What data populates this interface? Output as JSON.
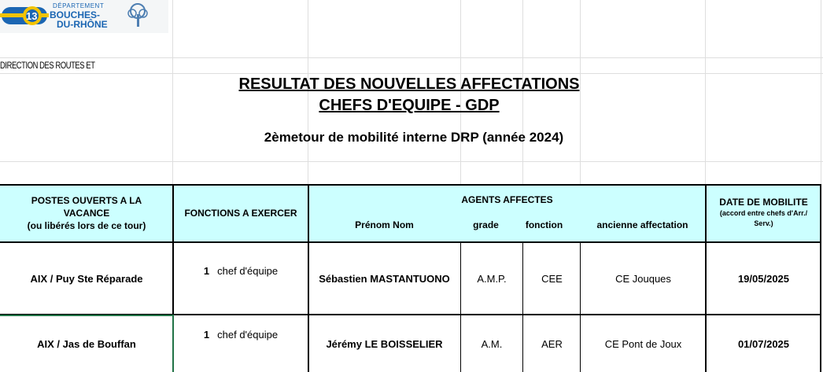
{
  "logo": {
    "departement": "DÉPARTEMENT",
    "line1": "BOUCHES-",
    "line2": "DU-RHÔNE",
    "emblem": "13"
  },
  "direction": "DIRECTION DES ROUTES ET",
  "title_line1": "RESULTAT DES NOUVELLES AFFECTATIONS",
  "title_line2": "CHEFS D'EQUIPE - GDP",
  "subtitle": "2èmetour de mobilité interne DRP (année 2024)",
  "headers": {
    "postes_line1": "POSTES OUVERTS A LA",
    "postes_line2": "VACANCE",
    "postes_line3": "(ou libérés lors de ce tour)",
    "fonctions": "FONCTIONS A EXERCER",
    "agents": "AGENTS AFFECTES",
    "prenom_nom": "Prénom Nom",
    "grade": "grade",
    "fonction": "fonction",
    "ancienne": "ancienne  affectation",
    "date_line1": "DATE DE MOBILITE",
    "date_line2": "(accord entre chefs d'Arr./",
    "date_line3": "Serv.)"
  },
  "rows": [
    {
      "poste": "AIX / Puy Ste Réparade",
      "qty": "1",
      "fonction_exercer": "chef d'équipe",
      "nom": "Sébastien MASTANTUONO",
      "grade": "A.M.P.",
      "fonction": "CEE",
      "ancienne": "CE Jouques",
      "date": "19/05/2025"
    },
    {
      "poste": "AIX / Jas de Bouffan",
      "qty": "1",
      "fonction_exercer": "chef d'équipe",
      "nom": "Jérémy LE BOISSELIER",
      "grade": "A.M.",
      "fonction": "AER",
      "ancienne": "CE Pont de Joux",
      "date": "01/07/2025"
    }
  ],
  "colors": {
    "header_bg": "#ccffff",
    "logo_blue": "#1b66b3",
    "logo_yellow": "#f3c300",
    "selection_green": "#217346"
  }
}
